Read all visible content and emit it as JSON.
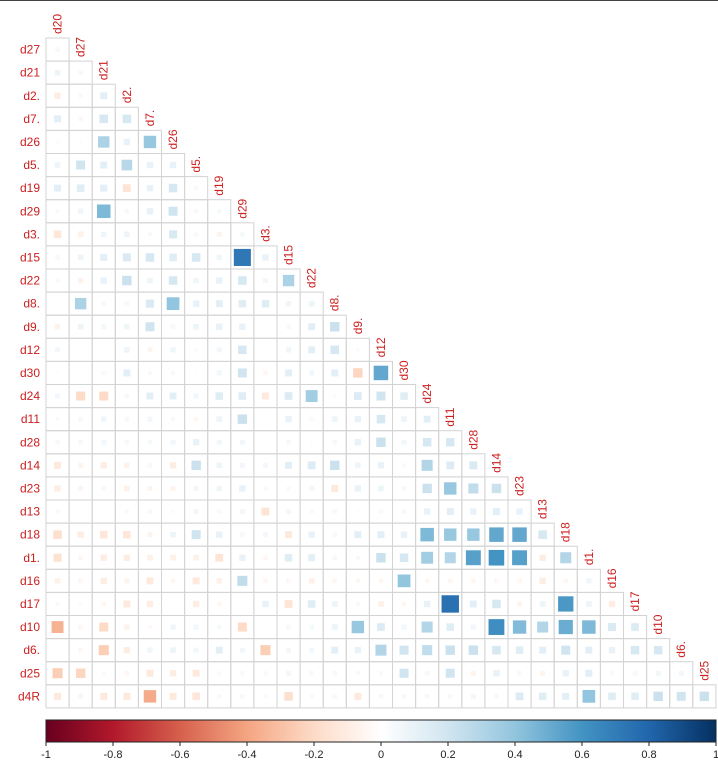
{
  "chart_data": {
    "type": "heatmap",
    "subtype": "correlation-matrix-lower-triangle",
    "method": "square",
    "variables": [
      "d20",
      "d27",
      "d21",
      "d2.",
      "d7.",
      "d26",
      "d5.",
      "d19",
      "d29",
      "d3.",
      "d15",
      "d22",
      "d8.",
      "d9.",
      "d12",
      "d30",
      "d24",
      "d11",
      "d28",
      "d14",
      "d23",
      "d13",
      "d18",
      "d1.",
      "d16",
      "d17",
      "d10",
      "d6.",
      "d25",
      "d4R"
    ],
    "row_labels": [
      "d27",
      "d21",
      "d2.",
      "d7.",
      "d26",
      "d5.",
      "d19",
      "d29",
      "d3.",
      "d15",
      "d22",
      "d8.",
      "d9.",
      "d12",
      "d30",
      "d24",
      "d11",
      "d28",
      "d14",
      "d23",
      "d13",
      "d18",
      "d1.",
      "d16",
      "d17",
      "d10",
      "d6.",
      "d25",
      "d4R"
    ],
    "column_labels": [
      "d20",
      "d27",
      "d21",
      "d2.",
      "d7.",
      "d26",
      "d5.",
      "d19",
      "d29",
      "d3.",
      "d15",
      "d22",
      "d8.",
      "d9.",
      "d12",
      "d30",
      "d24",
      "d11",
      "d28",
      "d14",
      "d23",
      "d13",
      "d18",
      "d1.",
      "d16",
      "d17",
      "d10",
      "d6.",
      "d25"
    ],
    "cell_values": [
      [
        0.05
      ],
      [
        0.08,
        0.05
      ],
      [
        -0.1,
        0.04,
        0.12
      ],
      [
        0.12,
        -0.05,
        0.18,
        0.18
      ],
      [
        0.03,
        0.02,
        0.32,
        0.1,
        0.38
      ],
      [
        0.08,
        0.2,
        0.12,
        0.28,
        0.1,
        0.1
      ],
      [
        0.12,
        0.14,
        0.12,
        -0.15,
        0.1,
        0.18,
        0.05
      ],
      [
        0.04,
        0.07,
        0.45,
        0.05,
        0.1,
        0.2,
        0.04,
        0.05
      ],
      [
        -0.14,
        -0.08,
        0.07,
        0.08,
        0.04,
        0.16,
        0.04,
        -0.06,
        0.05
      ],
      [
        0.05,
        0.08,
        0.12,
        0.16,
        0.18,
        0.14,
        0.18,
        0.07,
        0.72,
        0.1
      ],
      [
        0.04,
        -0.07,
        0.1,
        0.22,
        0.08,
        0.18,
        0.07,
        0.1,
        0.18,
        0.06,
        0.32
      ],
      [
        0.0,
        0.32,
        0.05,
        0.05,
        0.16,
        0.4,
        0.1,
        0.12,
        0.14,
        0.14,
        0.07,
        0.08
      ],
      [
        -0.07,
        0.08,
        0.06,
        0.07,
        0.2,
        0.05,
        0.08,
        0.1,
        0.1,
        0.0,
        0.05,
        0.12,
        0.22
      ],
      [
        0.06,
        0.0,
        0.0,
        0.08,
        -0.06,
        0.07,
        0.03,
        0.06,
        0.18,
        0.0,
        0.07,
        0.12,
        0.18,
        0.03
      ],
      [
        0.02,
        0.0,
        0.04,
        0.12,
        0.04,
        0.04,
        0.02,
        0.06,
        0.2,
        -0.05,
        0.12,
        0.06,
        0.12,
        -0.22,
        0.52
      ],
      [
        0.06,
        -0.2,
        -0.2,
        0.05,
        0.12,
        0.12,
        0.06,
        0.14,
        0.14,
        -0.12,
        0.15,
        0.35,
        0.03,
        0.15,
        0.2,
        0.14
      ],
      [
        0.04,
        0.05,
        0.07,
        0.05,
        0.06,
        0.04,
        -0.05,
        0.08,
        0.22,
        0.0,
        0.1,
        0.04,
        0.08,
        0.1,
        0.18,
        0.08,
        0.12
      ],
      [
        0.05,
        0.05,
        0.06,
        0.05,
        0.05,
        0.06,
        0.1,
        0.06,
        0.06,
        0.0,
        0.05,
        0.02,
        0.05,
        0.1,
        0.22,
        0.06,
        0.18,
        0.18
      ],
      [
        -0.12,
        -0.06,
        -0.1,
        -0.07,
        0.05,
        -0.1,
        0.22,
        0.08,
        0.06,
        0.06,
        0.12,
        0.15,
        0.22,
        0.08,
        0.1,
        0.04,
        0.3,
        0.15,
        0.16
      ],
      [
        -0.1,
        -0.06,
        0.05,
        -0.08,
        -0.06,
        -0.06,
        0.06,
        0.07,
        0.1,
        0.04,
        0.04,
        0.06,
        -0.12,
        0.1,
        0.08,
        0.05,
        0.22,
        0.38,
        0.25,
        0.22
      ],
      [
        0.04,
        0.0,
        0.0,
        0.04,
        0.05,
        0.03,
        0.06,
        0.04,
        0.06,
        -0.15,
        0.06,
        0.04,
        0.05,
        0.02,
        0.04,
        0.05,
        0.1,
        0.12,
        0.1,
        0.12,
        0.1
      ],
      [
        -0.18,
        -0.1,
        -0.14,
        -0.14,
        -0.06,
        0.08,
        0.2,
        0.1,
        0.05,
        0.06,
        -0.12,
        0.1,
        0.05,
        0.12,
        0.12,
        0.1,
        0.45,
        0.38,
        0.38,
        0.52,
        0.52,
        0.18
      ],
      [
        -0.16,
        -0.05,
        -0.1,
        -0.1,
        -0.08,
        -0.08,
        -0.08,
        -0.15,
        0.1,
        -0.05,
        0.14,
        0.12,
        0.05,
        0.04,
        0.22,
        0.18,
        0.35,
        0.3,
        0.55,
        0.6,
        0.55,
        -0.1,
        0.3
      ],
      [
        -0.08,
        -0.05,
        -0.1,
        -0.06,
        -0.12,
        -0.05,
        -0.12,
        -0.08,
        0.25,
        -0.05,
        -0.05,
        -0.08,
        -0.05,
        -0.05,
        -0.05,
        0.4,
        -0.05,
        -0.05,
        -0.05,
        -0.05,
        -0.05,
        -0.1,
        -0.05,
        0.07
      ],
      [
        0.04,
        -0.03,
        -0.05,
        -0.12,
        -0.1,
        0.0,
        -0.1,
        -0.05,
        0.0,
        0.1,
        -0.15,
        0.14,
        0.08,
        0.04,
        -0.08,
        -0.05,
        0.1,
        0.75,
        0.12,
        0.18,
        -0.06,
        0.08,
        0.58,
        0.08,
        -0.1
      ],
      [
        -0.35,
        -0.05,
        -0.2,
        -0.07,
        -0.04,
        0.07,
        0.06,
        0.05,
        -0.2,
        0.0,
        0.05,
        0.05,
        0.08,
        0.38,
        0.15,
        0.06,
        0.3,
        0.14,
        0.06,
        0.62,
        0.44,
        0.3,
        0.5,
        0.45,
        0.16,
        0.15
      ],
      [
        0.0,
        -0.05,
        -0.25,
        -0.1,
        0.07,
        0.08,
        0.06,
        0.12,
        0.06,
        -0.25,
        0.06,
        0.06,
        0.12,
        0.1,
        0.3,
        0.2,
        0.25,
        0.22,
        0.22,
        0.18,
        0.14,
        0.12,
        0.2,
        0.12,
        0.1,
        0.18,
        0.18
      ],
      [
        -0.25,
        -0.22,
        0.04,
        -0.05,
        -0.12,
        -0.1,
        -0.12,
        -0.04,
        0.04,
        0.04,
        0.06,
        0.05,
        0.05,
        0.04,
        0.04,
        0.2,
        0.05,
        0.2,
        -0.06,
        0.1,
        0.05,
        -0.06,
        0.1,
        0.12,
        0.04,
        0.05,
        0.06,
        0.06
      ],
      [
        -0.12,
        -0.06,
        -0.12,
        -0.12,
        -0.38,
        -0.12,
        -0.14,
        0.04,
        0.05,
        0.04,
        -0.18,
        0.04,
        0.05,
        -0.12,
        0.05,
        0.05,
        0.05,
        0.05,
        0.06,
        0.05,
        0.15,
        0.14,
        0.12,
        0.4,
        0.14,
        0.14,
        0.22,
        0.2,
        0.22
      ]
    ],
    "colorbar": {
      "ticks": [
        -1,
        -0.8,
        -0.6,
        -0.4,
        -0.2,
        0,
        0.2,
        0.4,
        0.6,
        0.8,
        1
      ],
      "tick_labels": [
        "-1",
        "-0.8",
        "-0.6",
        "-0.4",
        "-0.2",
        "0",
        "0.2",
        "0.4",
        "0.6",
        "0.8",
        "1"
      ],
      "range": [
        -1,
        1
      ],
      "palette": [
        "#67001f",
        "#b2182b",
        "#d6604d",
        "#f4a582",
        "#fddbc7",
        "#ffffff",
        "#d1e5f0",
        "#92c5de",
        "#4393c3",
        "#2166ac",
        "#053061"
      ],
      "placement": "bottom"
    },
    "label_color": "#cc1f1f",
    "grid": true
  }
}
